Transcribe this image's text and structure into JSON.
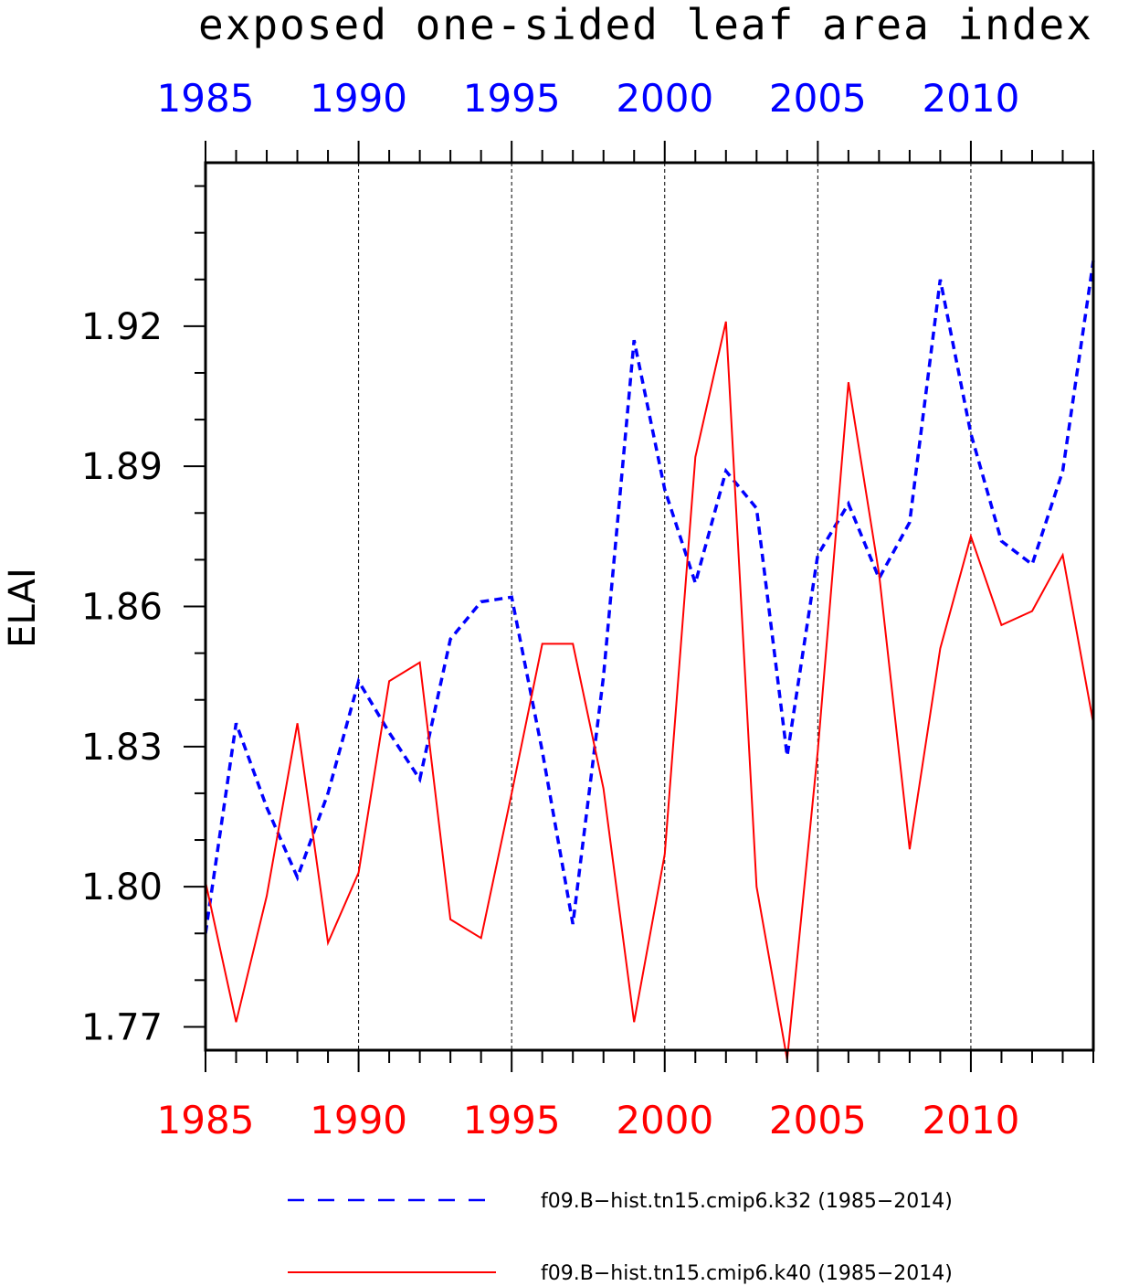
{
  "chart_data": {
    "type": "line",
    "title": "exposed one-sided leaf area index",
    "ylabel": "ELAI",
    "xlabel": "",
    "xlim": [
      1985,
      2014
    ],
    "ylim": [
      1.765,
      1.955
    ],
    "y_ticks": [
      1.77,
      1.8,
      1.83,
      1.86,
      1.89,
      1.92
    ],
    "y_tick_labels": [
      "1.77",
      "1.80",
      "1.83",
      "1.86",
      "1.89",
      "1.92"
    ],
    "x_ticks": [
      1985,
      1990,
      1995,
      2000,
      2005,
      2010
    ],
    "x_tick_labels": [
      "1985",
      "1990",
      "1995",
      "2000",
      "2005",
      "2010"
    ],
    "grid": "vertical dashed lines at major x ticks",
    "legend_position": "bottom",
    "x": [
      1985,
      1986,
      1987,
      1988,
      1989,
      1990,
      1991,
      1992,
      1993,
      1994,
      1995,
      1996,
      1997,
      1998,
      1999,
      2000,
      2001,
      2002,
      2003,
      2004,
      2005,
      2006,
      2007,
      2008,
      2009,
      2010,
      2011,
      2012,
      2013,
      2014
    ],
    "series": [
      {
        "name": "f09.B−hist.tn15.cmip6.k32 (1985−2014)",
        "color": "#0000ff",
        "style": "dashed",
        "axis_label_color": "#0000ff",
        "values": [
          1.79,
          1.835,
          1.817,
          1.802,
          1.82,
          1.844,
          1.833,
          1.823,
          1.853,
          1.861,
          1.862,
          1.829,
          1.792,
          1.845,
          1.917,
          1.885,
          1.865,
          1.889,
          1.881,
          1.828,
          1.871,
          1.882,
          1.866,
          1.878,
          1.93,
          1.897,
          1.874,
          1.869,
          1.889,
          1.934
        ]
      },
      {
        "name": "f09.B−hist.tn15.cmip6.k40 (1985−2014)",
        "color": "#ff0000",
        "style": "solid",
        "axis_label_color": "#ff0000",
        "values": [
          1.801,
          1.771,
          1.798,
          1.835,
          1.788,
          1.803,
          1.844,
          1.848,
          1.793,
          1.789,
          1.82,
          1.852,
          1.852,
          1.821,
          1.771,
          1.807,
          1.892,
          1.921,
          1.8,
          1.763,
          1.829,
          1.908,
          1.867,
          1.808,
          1.851,
          1.875,
          1.856,
          1.859,
          1.871,
          1.835
        ]
      }
    ]
  }
}
